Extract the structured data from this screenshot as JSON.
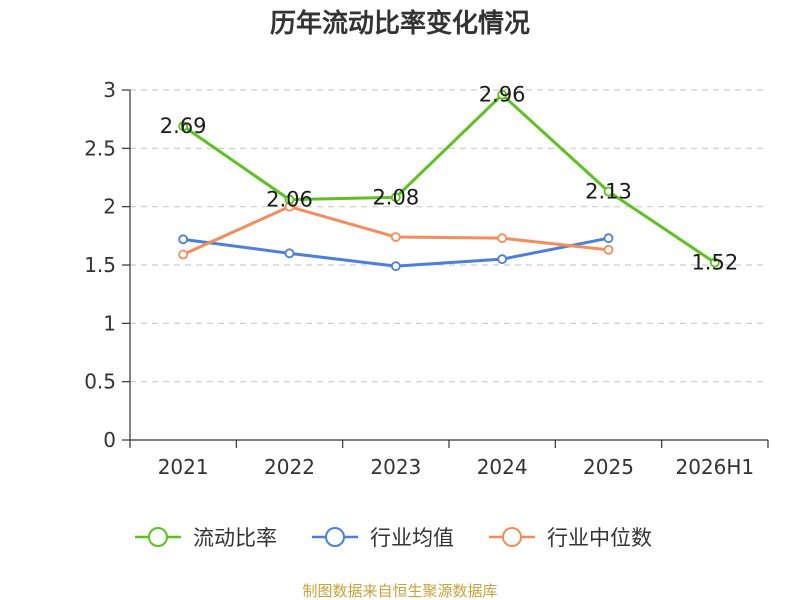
{
  "chart_data": {
    "type": "line",
    "title": "历年流动比率变化情况",
    "categories": [
      "2021",
      "2022",
      "2023",
      "2024",
      "2025",
      "2026H1"
    ],
    "ylim": [
      0,
      3
    ],
    "yticks": [
      "0",
      "0.5",
      "1",
      "1.5",
      "2",
      "2.5",
      "3"
    ],
    "grid": true,
    "legend_position": "bottom",
    "series": [
      {
        "name": "流动比率",
        "color": "#5cc21f",
        "values": [
          2.69,
          2.06,
          2.08,
          2.96,
          2.13,
          1.52
        ],
        "data_labels": [
          "2.69",
          "2.06",
          "2.08",
          "2.96",
          "2.13",
          "1.52"
        ]
      },
      {
        "name": "行业均值",
        "color": "#4a7fdb",
        "values": [
          1.72,
          1.6,
          1.49,
          1.55,
          1.73,
          null
        ]
      },
      {
        "name": "行业中位数",
        "color": "#f58d5b",
        "values": [
          1.59,
          2.0,
          1.74,
          1.73,
          1.63,
          null
        ]
      }
    ]
  },
  "source_text": "制图数据来自恒生聚源数据库",
  "source_color": "#c8a23a"
}
